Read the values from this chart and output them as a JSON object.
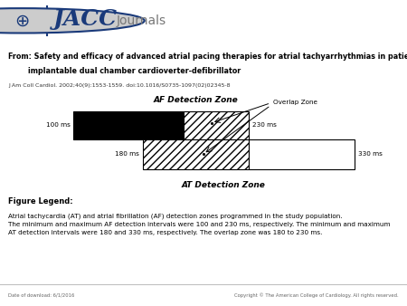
{
  "title_line1": "From: Safety and efficacy of advanced atrial pacing therapies for atrial tachyarrhythmias in patients with a new",
  "title_line2": "        implantable dual chamber cardioverter-defibrillator",
  "citation": "J Am Coll Cardiol. 2002;40(9):1553-1559. doi:10.1016/S0735-1097(02)02345-8",
  "af_label": "AF Detection Zone",
  "at_label": "AT Detection Zone",
  "overlap_label": "Overlap Zone",
  "label_100": "100 ms",
  "label_230": "230 ms",
  "label_180": "180 ms",
  "label_330": "330 ms",
  "figure_legend_title": "Figure Legend:",
  "figure_legend_text": "Atrial tachycardia (AT) and atrial fibrillation (AF) detection zones programmed in the study population. The minimum and maximum AF detection intervals were 100 and 230 ms, respectively. The minimum and maximum AT detection intervals were 180 and 330 ms, respectively. The overlap zone was 180 to 230 ms.",
  "footer_left": "Date of download: 6/1/2016",
  "footer_right": "Copyright © The American College of Cardiology. All rights reserved.",
  "header_bg": "#eeeeee",
  "bg_color": "#ffffff",
  "black_box_color": "#000000",
  "white_box_color": "#ffffff",
  "border_color": "#000000",
  "navy_line": "#1a3a7a",
  "jacc_blue": "#1a3a7a",
  "journals_gray": "#777777"
}
